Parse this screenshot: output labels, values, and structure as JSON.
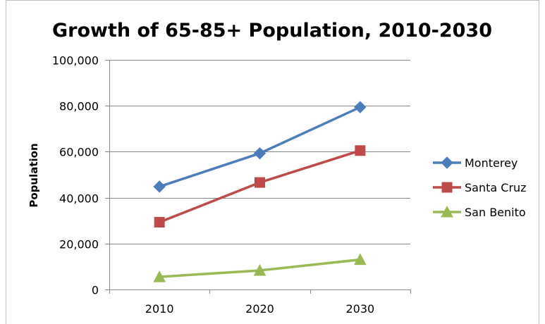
{
  "chart_data": {
    "type": "line",
    "title": "Growth of 65-85+ Population, 2010-2030",
    "xlabel": "",
    "ylabel": "Population",
    "categories": [
      "2010",
      "2020",
      "2030"
    ],
    "ylim": [
      0,
      100000
    ],
    "yticks": [
      "0",
      "20,000",
      "40,000",
      "60,000",
      "80,000",
      "100,000"
    ],
    "grid": true,
    "legend_position": "right",
    "series": [
      {
        "name": "Monterey",
        "values": [
          44800,
          59300,
          79400
        ],
        "color": "#4a7ebb",
        "marker": "diamond"
      },
      {
        "name": "Santa Cruz",
        "values": [
          29300,
          46600,
          60500
        ],
        "color": "#be4b48",
        "marker": "square"
      },
      {
        "name": "San Benito",
        "values": [
          5500,
          8300,
          13000
        ],
        "color": "#98b954",
        "marker": "triangle"
      }
    ]
  }
}
